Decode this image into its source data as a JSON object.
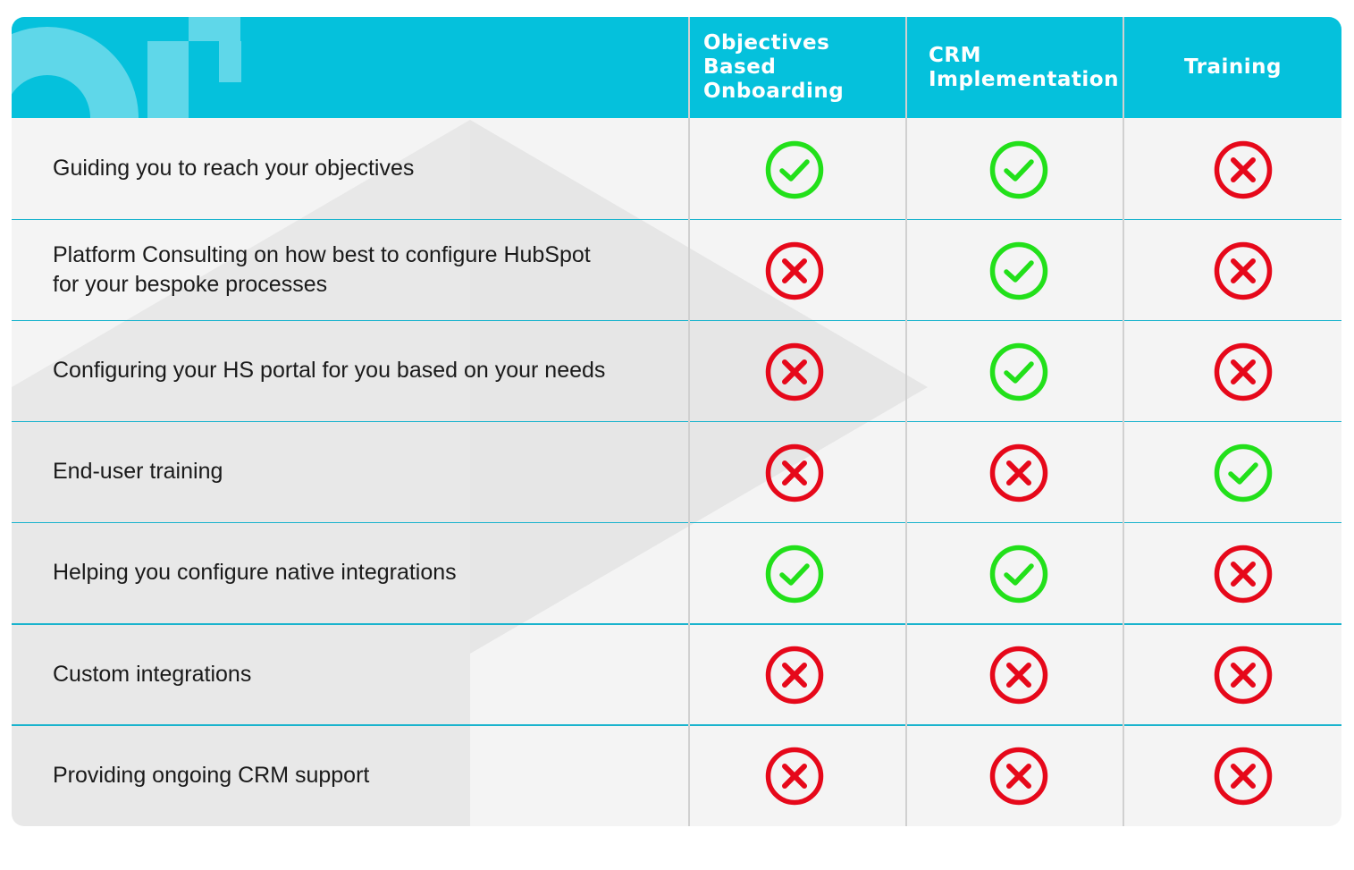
{
  "columns": [
    {
      "title": "Objectives Based Onboarding"
    },
    {
      "title": "CRM Implementation"
    },
    {
      "title": "Training"
    }
  ],
  "rows": [
    {
      "label": "Guiding you to reach your objectives",
      "values": [
        true,
        true,
        false
      ]
    },
    {
      "label": "Platform Consulting on how best to configure HubSpot\nfor your bespoke processes",
      "values": [
        false,
        true,
        false
      ]
    },
    {
      "label": "Configuring your HS portal for you based on your needs",
      "values": [
        false,
        true,
        false
      ]
    },
    {
      "label": "End-user training",
      "values": [
        false,
        false,
        true
      ]
    },
    {
      "label": "Helping you configure native integrations",
      "values": [
        true,
        true,
        false
      ]
    },
    {
      "label": "Custom integrations",
      "values": [
        false,
        false,
        false
      ]
    },
    {
      "label": "Providing ongoing CRM support",
      "values": [
        false,
        false,
        false
      ]
    }
  ],
  "colors": {
    "header": "#05c1dc",
    "check": "#22e01a",
    "cross": "#e6081a",
    "row_background": "#f4f4f4",
    "divider": "#19b3cd"
  },
  "icons": {
    "yes": "check-circle-icon",
    "no": "cross-circle-icon"
  }
}
